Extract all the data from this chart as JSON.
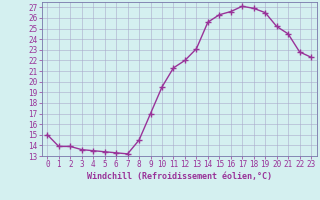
{
  "x": [
    0,
    1,
    2,
    3,
    4,
    5,
    6,
    7,
    8,
    9,
    10,
    11,
    12,
    13,
    14,
    15,
    16,
    17,
    18,
    19,
    20,
    21,
    22,
    23
  ],
  "y": [
    15,
    13.9,
    13.9,
    13.6,
    13.5,
    13.4,
    13.3,
    13.2,
    14.5,
    17.0,
    19.5,
    21.3,
    22.0,
    23.1,
    25.6,
    26.3,
    26.6,
    27.1,
    26.9,
    26.5,
    25.2,
    24.5,
    22.8,
    22.3
  ],
  "line_color": "#993399",
  "marker": "+",
  "marker_size": 4,
  "bg_color": "#d4f0f0",
  "grid_color": "#aaaacc",
  "xlabel": "Windchill (Refroidissement éolien,°C)",
  "ylim": [
    13,
    27.5
  ],
  "xlim": [
    -0.5,
    23.5
  ],
  "yticks": [
    13,
    14,
    15,
    16,
    17,
    18,
    19,
    20,
    21,
    22,
    23,
    24,
    25,
    26,
    27
  ],
  "xticks": [
    0,
    1,
    2,
    3,
    4,
    5,
    6,
    7,
    8,
    9,
    10,
    11,
    12,
    13,
    14,
    15,
    16,
    17,
    18,
    19,
    20,
    21,
    22,
    23
  ],
  "font_color": "#993399",
  "label_fontsize": 6,
  "tick_fontsize": 5.5,
  "spine_color": "#7777aa",
  "linewidth": 1.0,
  "markeredgewidth": 1.0
}
